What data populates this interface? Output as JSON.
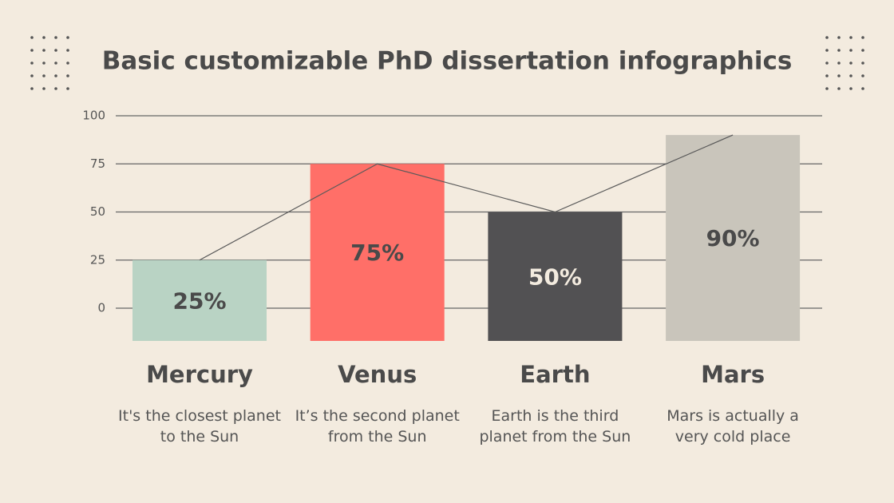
{
  "chart_data": {
    "type": "bar",
    "title": "Basic customizable PhD dissertation infographics",
    "categories": [
      "Mercury",
      "Venus",
      "Earth",
      "Mars"
    ],
    "descriptions": [
      "It's the closest planet to the Sun",
      "It’s the second planet from the Sun",
      "Earth is the third planet from the Sun",
      "Mars is actually a very cold place"
    ],
    "values": [
      25,
      75,
      50,
      90
    ],
    "value_labels": [
      "25%",
      "75%",
      "50%",
      "90%"
    ],
    "colors": [
      "#b9d3c4",
      "#ff6f68",
      "#525153",
      "#c9c5bb"
    ],
    "line_color": "#5a5a5a",
    "ylim": [
      -17,
      100
    ],
    "yticks": [
      0,
      25,
      50,
      75,
      100
    ],
    "grid": true
  }
}
